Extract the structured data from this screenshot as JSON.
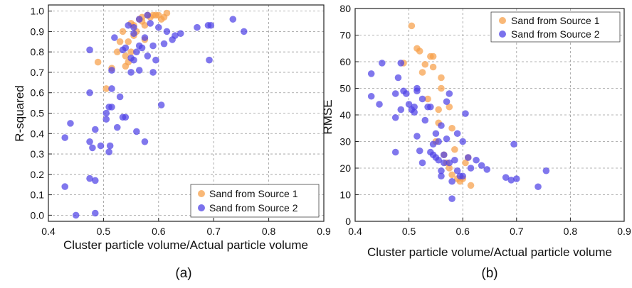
{
  "colors": {
    "series1": "#f7a04a",
    "series2": "#4f43e6"
  },
  "chart_data": [
    {
      "type": "scatter",
      "panel_label": "(a)",
      "xlabel": "Cluster particle volume/Actual particle volume",
      "ylabel": "R-squared",
      "xlim": [
        0.4,
        0.9
      ],
      "ylim": [
        -0.03,
        1.03
      ],
      "xticks": [
        0.4,
        0.5,
        0.6,
        0.7,
        0.8,
        0.9
      ],
      "yticks": [
        0.0,
        0.1,
        0.2,
        0.3,
        0.4,
        0.5,
        0.6,
        0.7,
        0.8,
        0.9,
        1.0
      ],
      "grid": true,
      "legend": "bottom-right",
      "series": [
        {
          "name": "Sand from Source 1",
          "color_key": "series1",
          "points": [
            [
              0.49,
              0.75
            ],
            [
              0.505,
              0.62
            ],
            [
              0.515,
              0.72
            ],
            [
              0.525,
              0.8
            ],
            [
              0.53,
              0.85
            ],
            [
              0.535,
              0.9
            ],
            [
              0.54,
              0.78
            ],
            [
              0.545,
              0.75
            ],
            [
              0.545,
              0.85
            ],
            [
              0.55,
              0.94
            ],
            [
              0.55,
              0.8
            ],
            [
              0.555,
              0.88
            ],
            [
              0.555,
              0.93
            ],
            [
              0.56,
              0.9
            ],
            [
              0.565,
              0.96
            ],
            [
              0.57,
              0.95
            ],
            [
              0.57,
              0.97
            ],
            [
              0.575,
              0.93
            ],
            [
              0.58,
              0.98
            ],
            [
              0.585,
              0.97
            ],
            [
              0.59,
              0.98
            ],
            [
              0.595,
              0.98
            ],
            [
              0.6,
              0.98
            ],
            [
              0.605,
              0.96
            ],
            [
              0.61,
              0.97
            ],
            [
              0.615,
              0.99
            ],
            [
              0.54,
              0.73
            ],
            [
              0.575,
              0.86
            ]
          ]
        },
        {
          "name": "Sand from Source 2",
          "color_key": "series2",
          "points": [
            [
              0.43,
              0.38
            ],
            [
              0.43,
              0.14
            ],
            [
              0.44,
              0.45
            ],
            [
              0.45,
              0.0
            ],
            [
              0.475,
              0.81
            ],
            [
              0.475,
              0.6
            ],
            [
              0.475,
              0.36
            ],
            [
              0.475,
              0.18
            ],
            [
              0.48,
              0.33
            ],
            [
              0.485,
              0.17
            ],
            [
              0.485,
              0.01
            ],
            [
              0.485,
              0.42
            ],
            [
              0.495,
              0.34
            ],
            [
              0.505,
              0.5
            ],
            [
              0.505,
              0.47
            ],
            [
              0.51,
              0.53
            ],
            [
              0.51,
              0.31
            ],
            [
              0.512,
              0.34
            ],
            [
              0.515,
              0.62
            ],
            [
              0.515,
              0.53
            ],
            [
              0.515,
              0.71
            ],
            [
              0.52,
              0.87
            ],
            [
              0.525,
              0.43
            ],
            [
              0.53,
              0.58
            ],
            [
              0.535,
              0.81
            ],
            [
              0.535,
              0.48
            ],
            [
              0.54,
              0.48
            ],
            [
              0.54,
              0.82
            ],
            [
              0.545,
              0.93
            ],
            [
              0.55,
              0.77
            ],
            [
              0.55,
              0.7
            ],
            [
              0.555,
              0.76
            ],
            [
              0.555,
              0.92
            ],
            [
              0.555,
              0.89
            ],
            [
              0.56,
              0.8
            ],
            [
              0.56,
              0.41
            ],
            [
              0.565,
              0.71
            ],
            [
              0.565,
              0.83
            ],
            [
              0.57,
              0.82
            ],
            [
              0.575,
              0.87
            ],
            [
              0.575,
              0.36
            ],
            [
              0.58,
              0.78
            ],
            [
              0.58,
              0.98
            ],
            [
              0.585,
              0.94
            ],
            [
              0.59,
              0.7
            ],
            [
              0.59,
              0.83
            ],
            [
              0.595,
              0.76
            ],
            [
              0.6,
              0.92
            ],
            [
              0.605,
              0.54
            ],
            [
              0.61,
              0.84
            ],
            [
              0.615,
              0.9
            ],
            [
              0.625,
              0.86
            ],
            [
              0.63,
              0.88
            ],
            [
              0.64,
              0.89
            ],
            [
              0.67,
              0.92
            ],
            [
              0.69,
              0.93
            ],
            [
              0.692,
              0.76
            ],
            [
              0.695,
              0.93
            ],
            [
              0.735,
              0.96
            ],
            [
              0.755,
              0.9
            ],
            [
              0.565,
              0.96
            ]
          ]
        }
      ]
    },
    {
      "type": "scatter",
      "panel_label": "(b)",
      "xlabel": "Cluster particle volume/Actual particle volume",
      "ylabel": "RMSE",
      "xlim": [
        0.4,
        0.9
      ],
      "ylim": [
        0,
        80
      ],
      "xticks": [
        0.4,
        0.5,
        0.6,
        0.7,
        0.8,
        0.9
      ],
      "yticks": [
        0,
        10,
        20,
        30,
        40,
        50,
        60,
        70,
        80
      ],
      "grid": true,
      "legend": "top-right",
      "series": [
        {
          "name": "Sand from Source 1",
          "color_key": "series1",
          "points": [
            [
              0.49,
              59.5
            ],
            [
              0.505,
              73.5
            ],
            [
              0.515,
              65
            ],
            [
              0.52,
              64
            ],
            [
              0.525,
              56
            ],
            [
              0.53,
              59
            ],
            [
              0.535,
              46
            ],
            [
              0.54,
              62
            ],
            [
              0.545,
              62
            ],
            [
              0.545,
              58
            ],
            [
              0.55,
              30
            ],
            [
              0.555,
              37
            ],
            [
              0.555,
              42
            ],
            [
              0.56,
              54
            ],
            [
              0.56,
              50
            ],
            [
              0.565,
              25
            ],
            [
              0.57,
              22
            ],
            [
              0.575,
              43
            ],
            [
              0.575,
              20
            ],
            [
              0.58,
              17.5
            ],
            [
              0.58,
              35
            ],
            [
              0.585,
              27
            ],
            [
              0.59,
              16
            ],
            [
              0.595,
              15
            ],
            [
              0.6,
              16
            ],
            [
              0.605,
              22
            ],
            [
              0.61,
              24
            ],
            [
              0.615,
              13.5
            ]
          ]
        },
        {
          "name": "Sand from Source 2",
          "color_key": "series2",
          "points": [
            [
              0.43,
              55.5
            ],
            [
              0.43,
              47
            ],
            [
              0.445,
              44
            ],
            [
              0.45,
              59.5
            ],
            [
              0.475,
              26
            ],
            [
              0.475,
              48
            ],
            [
              0.475,
              39
            ],
            [
              0.48,
              54
            ],
            [
              0.485,
              42
            ],
            [
              0.485,
              59.5
            ],
            [
              0.49,
              49
            ],
            [
              0.495,
              48
            ],
            [
              0.5,
              44
            ],
            [
              0.505,
              42
            ],
            [
              0.51,
              41
            ],
            [
              0.51,
              43
            ],
            [
              0.515,
              50
            ],
            [
              0.515,
              49
            ],
            [
              0.515,
              32
            ],
            [
              0.52,
              26.5
            ],
            [
              0.525,
              46
            ],
            [
              0.53,
              38
            ],
            [
              0.535,
              43
            ],
            [
              0.54,
              43
            ],
            [
              0.54,
              26
            ],
            [
              0.545,
              29
            ],
            [
              0.545,
              25
            ],
            [
              0.55,
              33
            ],
            [
              0.55,
              24
            ],
            [
              0.555,
              30
            ],
            [
              0.555,
              23
            ],
            [
              0.56,
              36
            ],
            [
              0.56,
              19
            ],
            [
              0.56,
              17
            ],
            [
              0.565,
              25
            ],
            [
              0.565,
              22
            ],
            [
              0.57,
              45
            ],
            [
              0.57,
              31
            ],
            [
              0.575,
              48
            ],
            [
              0.575,
              22
            ],
            [
              0.58,
              8.5
            ],
            [
              0.58,
              15
            ],
            [
              0.585,
              23
            ],
            [
              0.59,
              33
            ],
            [
              0.59,
              19
            ],
            [
              0.595,
              17
            ],
            [
              0.6,
              30
            ],
            [
              0.6,
              17
            ],
            [
              0.605,
              40.5
            ],
            [
              0.61,
              24
            ],
            [
              0.615,
              20
            ],
            [
              0.625,
              23
            ],
            [
              0.635,
              21
            ],
            [
              0.645,
              19.5
            ],
            [
              0.68,
              16.5
            ],
            [
              0.69,
              15.5
            ],
            [
              0.695,
              29
            ],
            [
              0.7,
              16
            ],
            [
              0.74,
              13
            ],
            [
              0.755,
              19
            ],
            [
              0.525,
              22
            ]
          ]
        }
      ]
    }
  ]
}
